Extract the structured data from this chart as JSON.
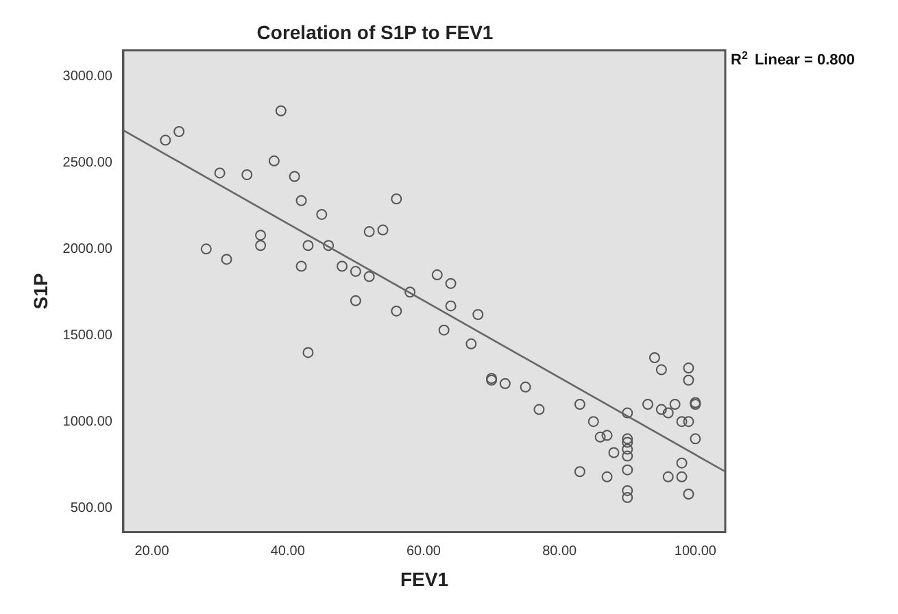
{
  "chart_data": {
    "type": "scatter",
    "title": "Corelation of S1P to FEV1",
    "xlabel": "FEV1",
    "ylabel": "S1P",
    "annotations": [
      "R$^{2}$ Linear = 0.800"
    ],
    "xlim": [
      15.8,
      104.4
    ],
    "ylim": [
      360,
      3150
    ],
    "xticks": [
      {
        "value": 20,
        "label": "20.00"
      },
      {
        "value": 40,
        "label": "40.00"
      },
      {
        "value": 60,
        "label": "60.00"
      },
      {
        "value": 80,
        "label": "80.00"
      },
      {
        "value": 100,
        "label": "100.00"
      }
    ],
    "yticks": [
      {
        "value": 500,
        "label": "500.00"
      },
      {
        "value": 1000,
        "label": "1000.00"
      },
      {
        "value": 1500,
        "label": "1500.00"
      },
      {
        "value": 2000,
        "label": "2000.00"
      },
      {
        "value": 2500,
        "label": "2500.00"
      },
      {
        "value": 3000,
        "label": "3000.00"
      }
    ],
    "grid": false,
    "legend": false,
    "marker": "circle",
    "series": [
      {
        "color": "#555555",
        "x": [
          22,
          24,
          28,
          30,
          31,
          34,
          36,
          36,
          38,
          39,
          41,
          42,
          42,
          43,
          43,
          45,
          46,
          48,
          50,
          50,
          52,
          52,
          54,
          56,
          56,
          58,
          62,
          63,
          64,
          64,
          67,
          68,
          70,
          70,
          72,
          75,
          77,
          83,
          83,
          85,
          86,
          87,
          87,
          88,
          90,
          90,
          90,
          90,
          90,
          90,
          90,
          90,
          93,
          94,
          95,
          95,
          96,
          96,
          97,
          98,
          98,
          98,
          99,
          99,
          99,
          99,
          100,
          100,
          100
        ],
        "values": [
          2630,
          2680,
          2000,
          2440,
          1940,
          2430,
          2080,
          2020,
          2510,
          2800,
          2420,
          1900,
          2280,
          2020,
          1400,
          2200,
          2020,
          1900,
          1870,
          1700,
          2100,
          1840,
          2110,
          2290,
          1640,
          1750,
          1850,
          1530,
          1800,
          1670,
          1450,
          1620,
          1250,
          1240,
          1220,
          1200,
          1070,
          1100,
          710,
          1000,
          910,
          680,
          920,
          820,
          1050,
          900,
          880,
          840,
          800,
          720,
          600,
          560,
          1100,
          1370,
          1300,
          1070,
          1050,
          680,
          1100,
          680,
          1000,
          760,
          1000,
          580,
          1310,
          1240,
          1110,
          1100,
          900
        ]
      },
      {
        "type": "line",
        "color": "#666666",
        "x": [
          15.8,
          104.4
        ],
        "values": [
          2687,
          710
        ],
        "marker": "none",
        "line_style": "solid"
      }
    ]
  }
}
